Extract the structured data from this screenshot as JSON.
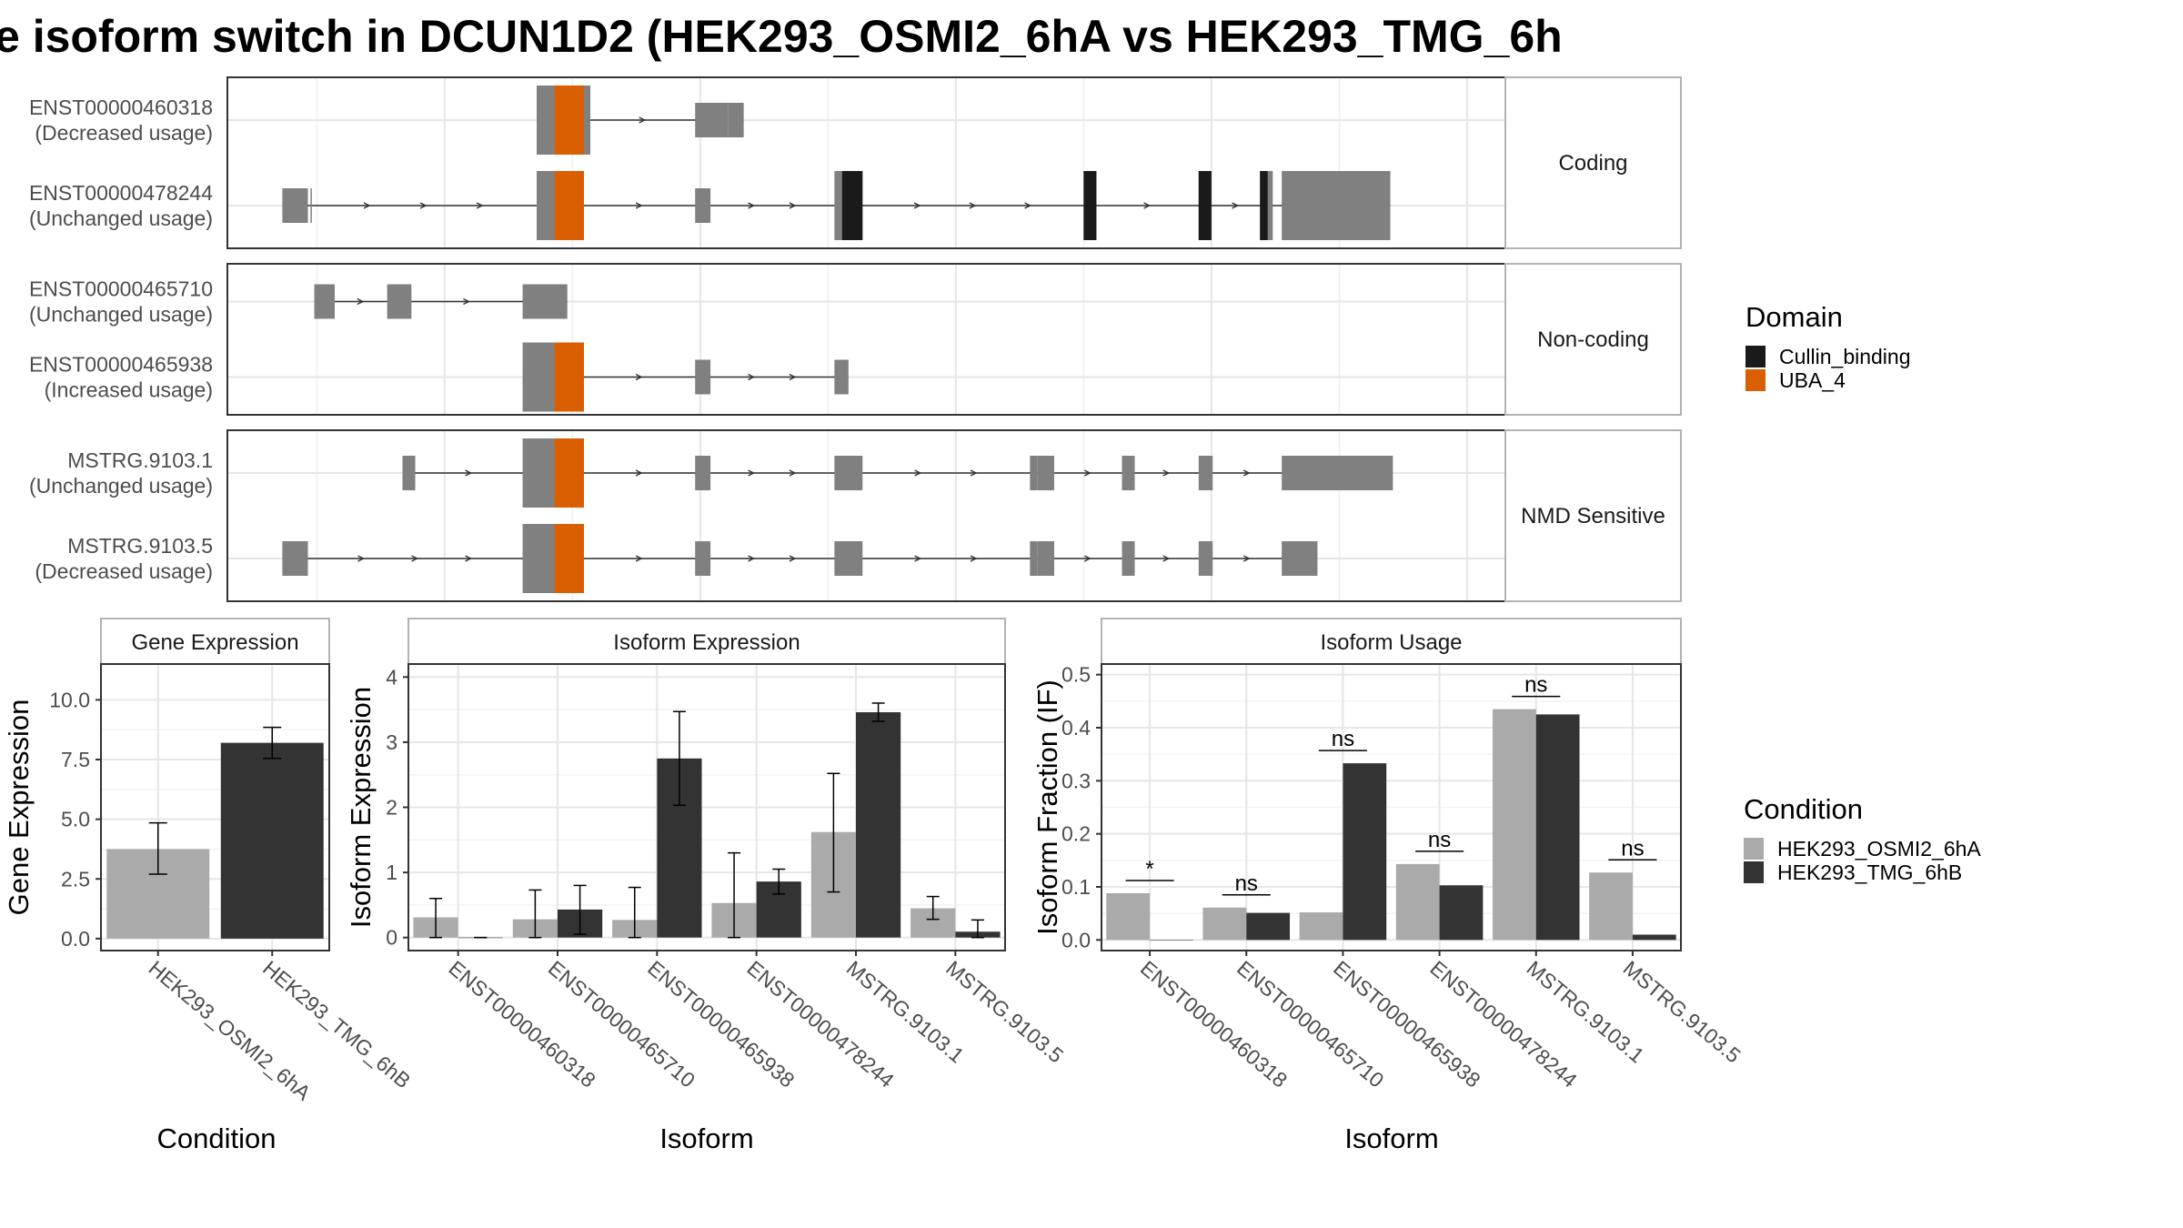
{
  "title": "e isoform switch in DCUN1D2 (HEK293_OSMI2_6hA vs HEK293_TMG_6h",
  "colors": {
    "exon": "#808080",
    "panel_border": "#333333",
    "strip_border": "#b3b3b3",
    "grid_major": "#e6e6e6",
    "grid_minor": "#f3f3f3",
    "domain_Cullin_binding": "#1a1a1a",
    "domain_UBA_4": "#d95f02",
    "cond_1": "#aaaaaa",
    "cond_2": "#333333"
  },
  "chart_data": [
    {
      "type": "gene_structure",
      "xlim": [
        0,
        1000
      ],
      "facets": [
        {
          "label": "Coding",
          "transcripts": [
            {
              "id": "ENST00000460318",
              "usage": "(Decreased usage)",
              "exons": [
                [
                  242,
                  284
                ],
                [
                  366,
                  392
                ],
                [
                  392,
                  404
                ]
              ],
              "domains": [
                {
                  "name": "UBA_4",
                  "start": 256,
                  "end": 279
                }
              ]
            },
            {
              "id": "ENST00000478244",
              "usage": "(Unchanged usage)",
              "exons": [
                [
                  43,
                  63
                ],
                [
                  65,
                  65.5
                ],
                [
                  242,
                  279
                ],
                [
                  366,
                  378
                ],
                [
                  475,
                  497
                ],
                [
                  670,
                  680
                ],
                [
                  760,
                  770
                ],
                [
                  808,
                  818
                ],
                [
                  825,
                  910
                ]
              ],
              "domains": [
                {
                  "name": "UBA_4",
                  "start": 256,
                  "end": 279
                },
                {
                  "name": "Cullin_binding",
                  "start": 481,
                  "end": 497
                },
                {
                  "name": "Cullin_binding",
                  "start": 670,
                  "end": 680
                },
                {
                  "name": "Cullin_binding",
                  "start": 760,
                  "end": 770
                },
                {
                  "name": "Cullin_binding",
                  "start": 808,
                  "end": 814
                }
              ]
            }
          ]
        },
        {
          "label": "Non-coding",
          "transcripts": [
            {
              "id": "ENST00000465710",
              "usage": "(Unchanged usage)",
              "exons": [
                [
                  68,
                  84
                ],
                [
                  125,
                  144
                ],
                [
                  231,
                  266
                ]
              ],
              "domains": []
            },
            {
              "id": "ENST00000465938",
              "usage": "(Increased usage)",
              "exons": [
                [
                  231,
                  279
                ],
                [
                  366,
                  378
                ],
                [
                  475,
                  486
                ]
              ],
              "domains": [
                {
                  "name": "UBA_4",
                  "start": 256,
                  "end": 279
                }
              ]
            }
          ]
        },
        {
          "label": "NMD Sensitive",
          "transcripts": [
            {
              "id": "MSTRG.9103.1",
              "usage": "(Unchanged usage)",
              "exons": [
                [
                  137,
                  147
                ],
                [
                  231,
                  279
                ],
                [
                  366,
                  378
                ],
                [
                  475,
                  497
                ],
                [
                  628,
                  634
                ],
                [
                  634,
                  647
                ],
                [
                  700,
                  710
                ],
                [
                  760,
                  771
                ],
                [
                  825,
                  912
                ]
              ],
              "domains": [
                {
                  "name": "UBA_4",
                  "start": 256,
                  "end": 279
                }
              ]
            },
            {
              "id": "MSTRG.9103.5",
              "usage": "(Decreased usage)",
              "exons": [
                [
                  43,
                  63
                ],
                [
                  231,
                  279
                ],
                [
                  366,
                  378
                ],
                [
                  475,
                  497
                ],
                [
                  628,
                  634
                ],
                [
                  634,
                  647
                ],
                [
                  700,
                  710
                ],
                [
                  760,
                  771
                ],
                [
                  825,
                  853
                ]
              ],
              "domains": [
                {
                  "name": "UBA_4",
                  "start": 256,
                  "end": 279
                }
              ]
            }
          ]
        }
      ],
      "legend": {
        "title": "Domain",
        "entries": [
          "Cullin_binding",
          "UBA_4"
        ]
      }
    },
    {
      "type": "bar",
      "strip": "Gene Expression",
      "xlabel": "Condition",
      "ylabel": "Gene Expression",
      "ylim": [
        -0.5,
        11.5
      ],
      "yticks": [
        "0.0",
        "2.5",
        "5.0",
        "7.5",
        "10.0"
      ],
      "categories": [
        "HEK293_OSMI2_6hA",
        "HEK293_TMG_6hB"
      ],
      "values": [
        3.75,
        8.2
      ],
      "err_low": [
        2.7,
        7.55
      ],
      "err_high": [
        4.85,
        8.85
      ]
    },
    {
      "type": "bar",
      "strip": "Isoform Expression",
      "xlabel": "Isoform",
      "ylabel": "Isoform Expression",
      "ylim": [
        -0.2,
        4.2
      ],
      "yticks": [
        "0",
        "1",
        "2",
        "3",
        "4"
      ],
      "categories": [
        "ENST00000460318",
        "ENST00000465710",
        "ENST00000465938",
        "ENST00000478244",
        "MSTRG.9103.1",
        "MSTRG.9103.5"
      ],
      "series": [
        {
          "name": "HEK293_OSMI2_6hA",
          "values": [
            0.31,
            0.28,
            0.27,
            0.53,
            1.62,
            0.45
          ],
          "err_low": [
            0.0,
            0.0,
            0.0,
            0.0,
            0.7,
            0.28
          ],
          "err_high": [
            0.6,
            0.73,
            0.77,
            1.3,
            2.52,
            0.63
          ]
        },
        {
          "name": "HEK293_TMG_6hB",
          "values": [
            0.0,
            0.43,
            2.75,
            0.86,
            3.46,
            0.09
          ],
          "err_low": [
            0.0,
            0.05,
            2.03,
            0.67,
            3.32,
            0.0
          ],
          "err_high": [
            0.0,
            0.8,
            3.47,
            1.05,
            3.6,
            0.27
          ]
        }
      ]
    },
    {
      "type": "bar",
      "strip": "Isoform Usage",
      "xlabel": "Isoform",
      "ylabel": "Isoform Fraction (IF)",
      "ylim": [
        -0.02,
        0.52
      ],
      "yticks": [
        "0.0",
        "0.1",
        "0.2",
        "0.3",
        "0.4",
        "0.5"
      ],
      "categories": [
        "ENST00000460318",
        "ENST00000465710",
        "ENST00000465938",
        "ENST00000478244",
        "MSTRG.9103.1",
        "MSTRG.9103.5"
      ],
      "series": [
        {
          "name": "HEK293_OSMI2_6hA",
          "values": [
            0.088,
            0.061,
            0.052,
            0.143,
            0.435,
            0.127
          ]
        },
        {
          "name": "HEK293_TMG_6hB",
          "values": [
            0.0,
            0.051,
            0.333,
            0.103,
            0.425,
            0.01
          ]
        }
      ],
      "significance": [
        {
          "label": "*",
          "y": 0.112
        },
        {
          "label": "ns",
          "y": 0.085
        },
        {
          "label": "ns",
          "y": 0.357
        },
        {
          "label": "ns",
          "y": 0.167
        },
        {
          "label": "ns",
          "y": 0.459
        },
        {
          "label": "ns",
          "y": 0.151
        }
      ],
      "legend": {
        "title": "Condition",
        "entries": [
          "HEK293_OSMI2_6hA",
          "HEK293_TMG_6hB"
        ]
      }
    }
  ]
}
